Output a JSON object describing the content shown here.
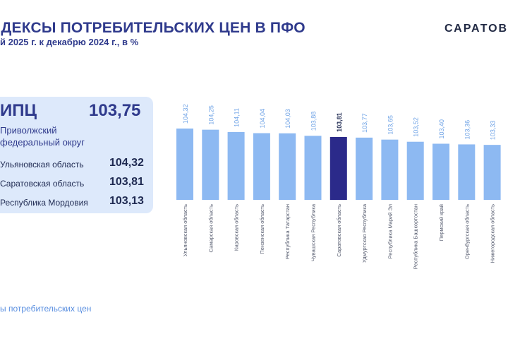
{
  "header": {
    "title": "НДЕКСЫ ПОТРЕБИТЕЛЬСКИХ ЦЕН В ПФО",
    "subtitle": "й 2025 г. к декабрю 2024 г., в %",
    "brand": "САРАТОВС"
  },
  "summary": {
    "cpi_label": "ИПЦ",
    "cpi_value": "103,75",
    "region": "Приволжский федеральный округ",
    "rows": [
      {
        "name": "Ульяновская область",
        "value": "104,32"
      },
      {
        "name": "Саратовская область",
        "value": "103,81"
      },
      {
        "name": "Республика Мордовия",
        "value": "103,13"
      }
    ]
  },
  "footnote": "ы потребительских цен",
  "colors": {
    "bar": "#8db9f2",
    "highlight": "#2b2a8a",
    "value_label": "#6fa3e6",
    "highlight_label": "#1f2a52",
    "card": "#dde9fb"
  },
  "chart_data": {
    "type": "bar",
    "categories": [
      "Ульяновская область",
      "Самарская область",
      "Кировская область",
      "Пензенская область",
      "Республика Татарстан",
      "Чувашская Республика",
      "Саратовская область",
      "Удмуртская Республика",
      "Республика Марий Эл",
      "Республика Башкортостан",
      "Пермский край",
      "Оренбургская область",
      "Нижегородская область"
    ],
    "values": [
      104.32,
      104.25,
      104.11,
      104.04,
      104.03,
      103.88,
      103.81,
      103.77,
      103.65,
      103.52,
      103.4,
      103.36,
      103.33
    ],
    "value_labels": [
      "104,32",
      "104,25",
      "104,11",
      "104,04",
      "104,03",
      "103,88",
      "103,81",
      "103,77",
      "103,65",
      "103,52",
      "103,40",
      "103,36",
      "103,33"
    ],
    "highlight_index": 6,
    "ylim": [
      100,
      104.32
    ],
    "grid": false
  }
}
